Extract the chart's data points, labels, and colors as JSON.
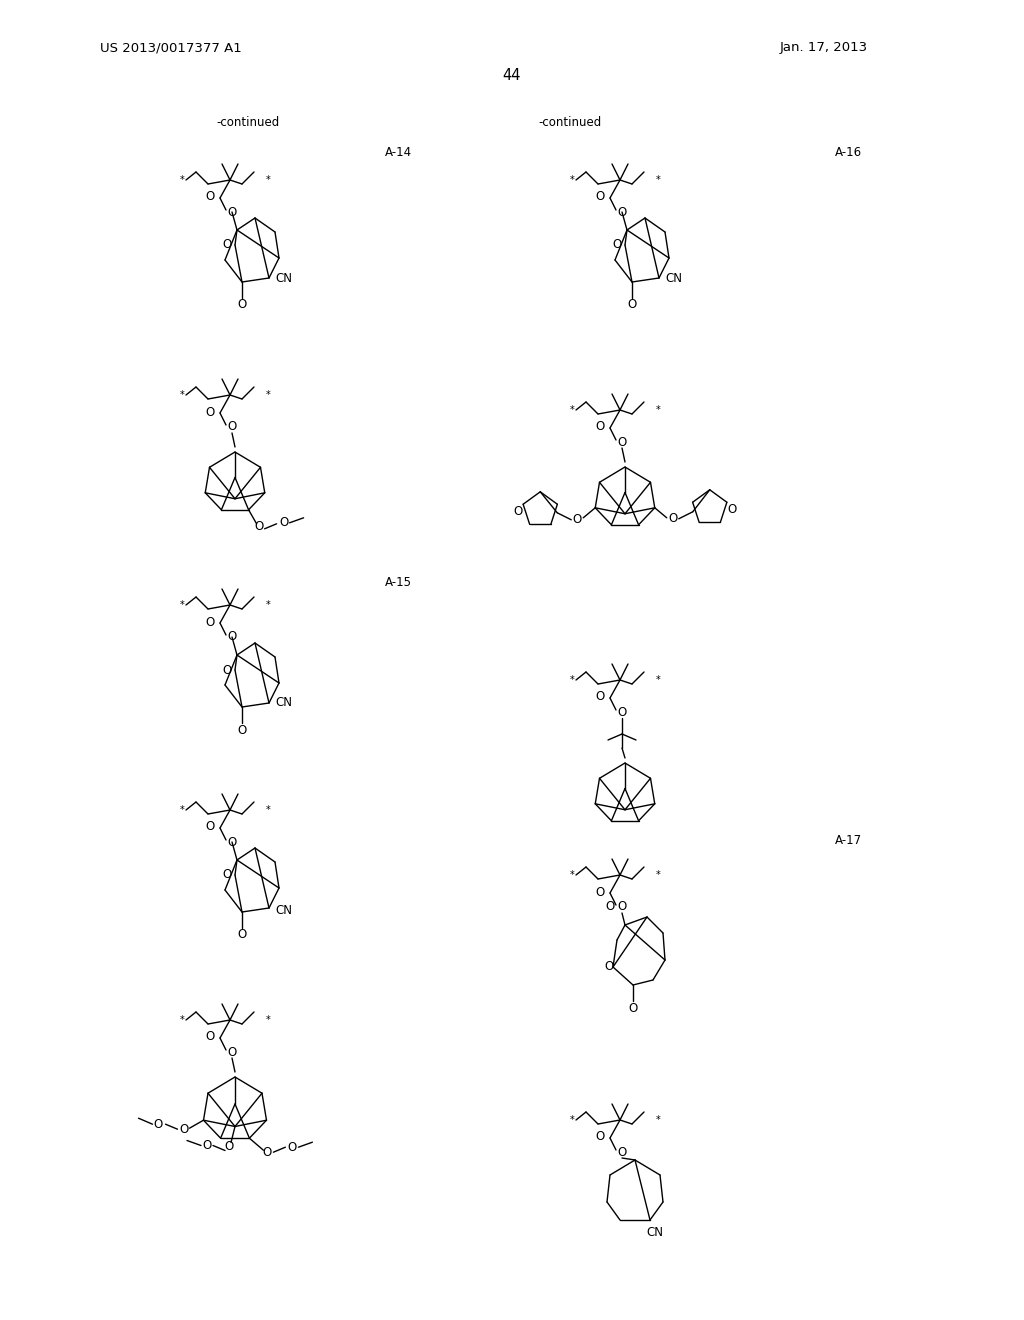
{
  "page_number": "44",
  "patent_number": "US 2013/0017377 A1",
  "date": "Jan. 17, 2013",
  "background_color": "#ffffff",
  "text_color": "#000000",
  "header_left": "US 2013/0017377 A1",
  "header_right": "Jan. 17, 2013",
  "continued_left": "-continued",
  "continued_right": "-continued",
  "label_A14": "A-14",
  "label_A15": "A-15",
  "label_A16": "A-16",
  "label_A17": "A-17",
  "lw": 1.0
}
